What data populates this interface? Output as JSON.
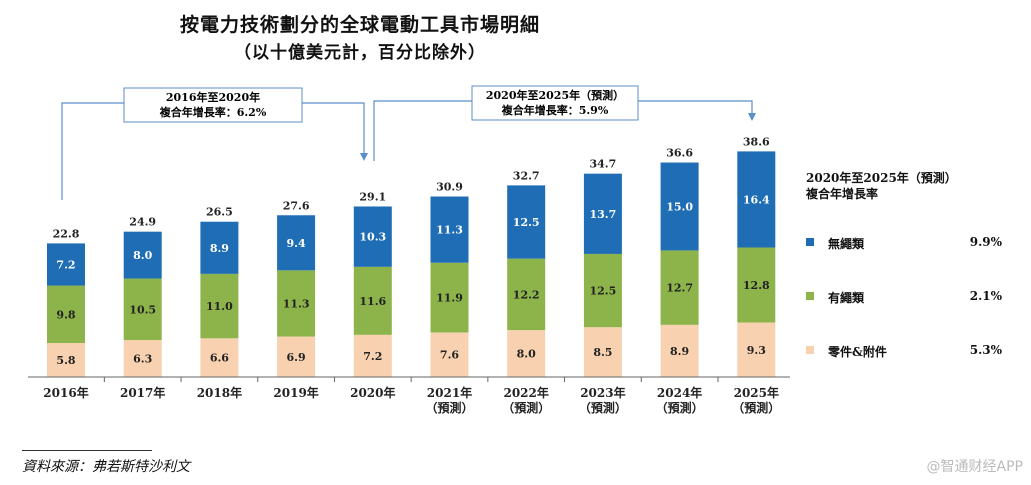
{
  "title": "按電力技術劃分的全球電動工具市場明細",
  "subtitle": "（以十億美元計，百分比除外）",
  "callouts": [
    {
      "line1": "2016年至2020年",
      "line2": "複合年增長率：6.2%"
    },
    {
      "line1": "2020年至2025年（預測）",
      "line2": "複合年增長率：5.9%"
    }
  ],
  "legend": {
    "title_line1": "2020年至2025年（預測）",
    "title_line2": "複合年增長率",
    "items": [
      {
        "label": "無繩類",
        "cagr": "9.9%",
        "color": "#1f6db4"
      },
      {
        "label": "有繩類",
        "cagr": "2.1%",
        "color": "#8db44a"
      },
      {
        "label": "零件&附件",
        "cagr": "5.3%",
        "color": "#f8d2b0"
      }
    ]
  },
  "source": "資料來源：弗若斯特沙利文",
  "watermark": "@智通财经APP",
  "chart_data": {
    "type": "bar",
    "stacked": true,
    "categories": [
      "2016年",
      "2017年",
      "2018年",
      "2019年",
      "2020年",
      "2021年",
      "2022年",
      "2023年",
      "2024年",
      "2025年"
    ],
    "category_sublabels": [
      "",
      "",
      "",
      "",
      "",
      "（預測）",
      "（預測）",
      "（預測）",
      "（預測）",
      "（預測）"
    ],
    "series": [
      {
        "name": "零件&附件",
        "values": [
          5.8,
          6.3,
          6.6,
          6.9,
          7.2,
          7.6,
          8.0,
          8.5,
          8.9,
          9.3
        ],
        "color": "#f8d2b0"
      },
      {
        "name": "有繩類",
        "values": [
          9.8,
          10.5,
          11.0,
          11.3,
          11.6,
          11.9,
          12.2,
          12.5,
          12.7,
          12.8
        ],
        "color": "#8db44a"
      },
      {
        "name": "無繩類",
        "values": [
          7.2,
          8.0,
          8.9,
          9.4,
          10.3,
          11.3,
          12.5,
          13.7,
          15.0,
          16.4
        ],
        "color": "#1f6db4"
      }
    ],
    "totals": [
      "22.8",
      "24.9",
      "26.5",
      "27.6",
      "29.1",
      "30.9",
      "32.7",
      "34.7",
      "36.6",
      "38.6"
    ],
    "segment_labels": [
      [
        "5.8",
        "6.3",
        "6.6",
        "6.9",
        "7.2",
        "7.6",
        "8.0",
        "8.5",
        "8.9",
        "9.3"
      ],
      [
        "9.8",
        "10.5",
        "11.0",
        "11.3",
        "11.6",
        "11.9",
        "12.2",
        "12.5",
        "12.7",
        "12.8"
      ],
      [
        "7.2",
        "8.0",
        "8.9",
        "9.4",
        "10.3",
        "11.3",
        "12.5",
        "13.7",
        "15.0",
        "16.4"
      ]
    ],
    "ylim": [
      0,
      40
    ],
    "legend_position": "right"
  }
}
